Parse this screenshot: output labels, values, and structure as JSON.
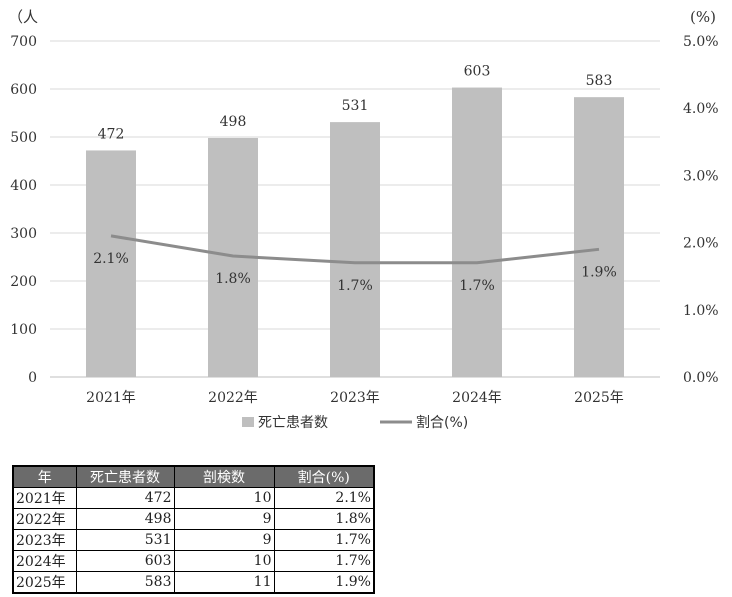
{
  "chart_data": {
    "type": "bar",
    "categories": [
      "2021年",
      "2022年",
      "2023年",
      "2024年",
      "2025年"
    ],
    "series": [
      {
        "name": "死亡患者数",
        "type": "bar",
        "axis": "left",
        "values": [
          472,
          498,
          531,
          603,
          583
        ],
        "labels": [
          "472",
          "498",
          "531",
          "603",
          "583"
        ],
        "color": "#bfbfbf"
      },
      {
        "name": "割合(%)",
        "type": "line",
        "axis": "right",
        "values": [
          2.1,
          1.8,
          1.7,
          1.7,
          1.9
        ],
        "labels": [
          "2.1%",
          "1.8%",
          "1.7%",
          "1.7%",
          "1.9%"
        ],
        "color": "#8c8c8c"
      }
    ],
    "y_left": {
      "unit": "（人",
      "ylim": [
        0,
        700
      ],
      "ticks": [
        "0",
        "100",
        "200",
        "300",
        "400",
        "500",
        "600",
        "700"
      ]
    },
    "y_right": {
      "unit": "(%)",
      "ylim": [
        0,
        5.0
      ],
      "ticks": [
        "0.0%",
        "1.0%",
        "2.0%",
        "3.0%",
        "4.0%",
        "5.0%"
      ]
    },
    "grid": true,
    "legend": "bottom"
  },
  "table": {
    "headers": [
      "年",
      "死亡患者数",
      "剖検数",
      "割合(%)"
    ],
    "rows": [
      [
        "2021年",
        "472",
        "10",
        "2.1%"
      ],
      [
        "2022年",
        "498",
        "9",
        "1.8%"
      ],
      [
        "2023年",
        "531",
        "9",
        "1.7%"
      ],
      [
        "2024年",
        "603",
        "10",
        "1.7%"
      ],
      [
        "2025年",
        "583",
        "11",
        "1.9%"
      ]
    ]
  }
}
